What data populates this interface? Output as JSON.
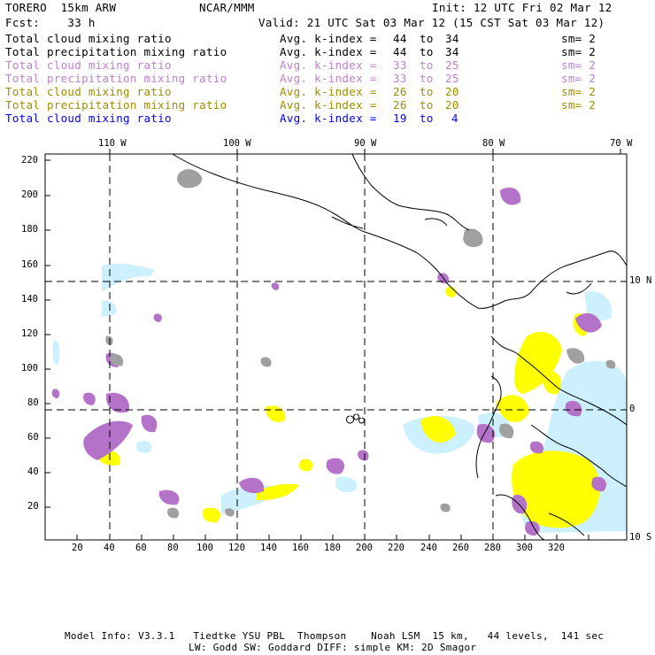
{
  "header": {
    "model": "TORERO  15km ARW",
    "center": "NCAR/MMM",
    "init": "Init: 12 UTC Fri 02 Mar 12",
    "forecast": "Fcst:    33 h",
    "valid": "Valid: 21 UTC Sat 03 Mar 12 (15 CST Sat 03 Mar 12)"
  },
  "legend": [
    {
      "field": "Total cloud mixing ratio",
      "k_label": "Avg. k-index =",
      "k_from": "44",
      "k_to_word": "to",
      "k_to": "34",
      "sm": "sm= 2",
      "color": "#000000"
    },
    {
      "field": "Total precipitation mixing ratio",
      "k_label": "Avg. k-index =",
      "k_from": "44",
      "k_to_word": "to",
      "k_to": "34",
      "sm": "sm= 2",
      "color": "#000000"
    },
    {
      "field": "Total cloud mixing ratio",
      "k_label": "Avg. k-index =",
      "k_from": "33",
      "k_to_word": "to",
      "k_to": "25",
      "sm": "sm= 2",
      "color": "#c080d0"
    },
    {
      "field": "Total precipitation mixing ratio",
      "k_label": "Avg. k-index =",
      "k_from": "33",
      "k_to_word": "to",
      "k_to": "25",
      "sm": "sm= 2",
      "color": "#c080d0"
    },
    {
      "field": "Total cloud mixing ratio",
      "k_label": "Avg. k-index =",
      "k_from": "26",
      "k_to_word": "to",
      "k_to": "20",
      "sm": "sm= 2",
      "color": "#a08c00"
    },
    {
      "field": "Total precipitation mixing ratio",
      "k_label": "Avg. k-index =",
      "k_from": "26",
      "k_to_word": "to",
      "k_to": "20",
      "sm": "sm= 2",
      "color": "#a08c00"
    },
    {
      "field": "Total cloud mixing ratio",
      "k_label": "Avg. k-index =",
      "k_from": "19",
      "k_to_word": "to",
      "k_to": "4",
      "sm": "",
      "color": "#0000ff"
    }
  ],
  "map": {
    "lon_labels": [
      "110 W",
      "100 W",
      "90 W",
      "80 W",
      "70 W"
    ],
    "lat_labels": [
      "10 N",
      "0",
      "10 S"
    ],
    "x_ticks": [
      "20",
      "40",
      "60",
      "80",
      "100",
      "120",
      "140",
      "160",
      "180",
      "200",
      "220",
      "240",
      "260",
      "280",
      "300",
      "320"
    ],
    "y_ticks": [
      "220",
      "200",
      "180",
      "160",
      "140",
      "120",
      "100",
      "80",
      "60",
      "40",
      "20"
    ],
    "colors": {
      "gray": "#a0a0a0",
      "purple": "#b473c8",
      "yellow": "#ffff00",
      "lightblue": "#cdf0ff",
      "coast": "#000000"
    }
  },
  "footer": {
    "line1": "Model Info: V3.3.1   Tiedtke YSU PBL  Thompson    Noah LSM  15 km,   44 levels,  141 sec",
    "line2": "LW: Godd SW: Goddard DIFF: simple KM: 2D Smagor"
  }
}
